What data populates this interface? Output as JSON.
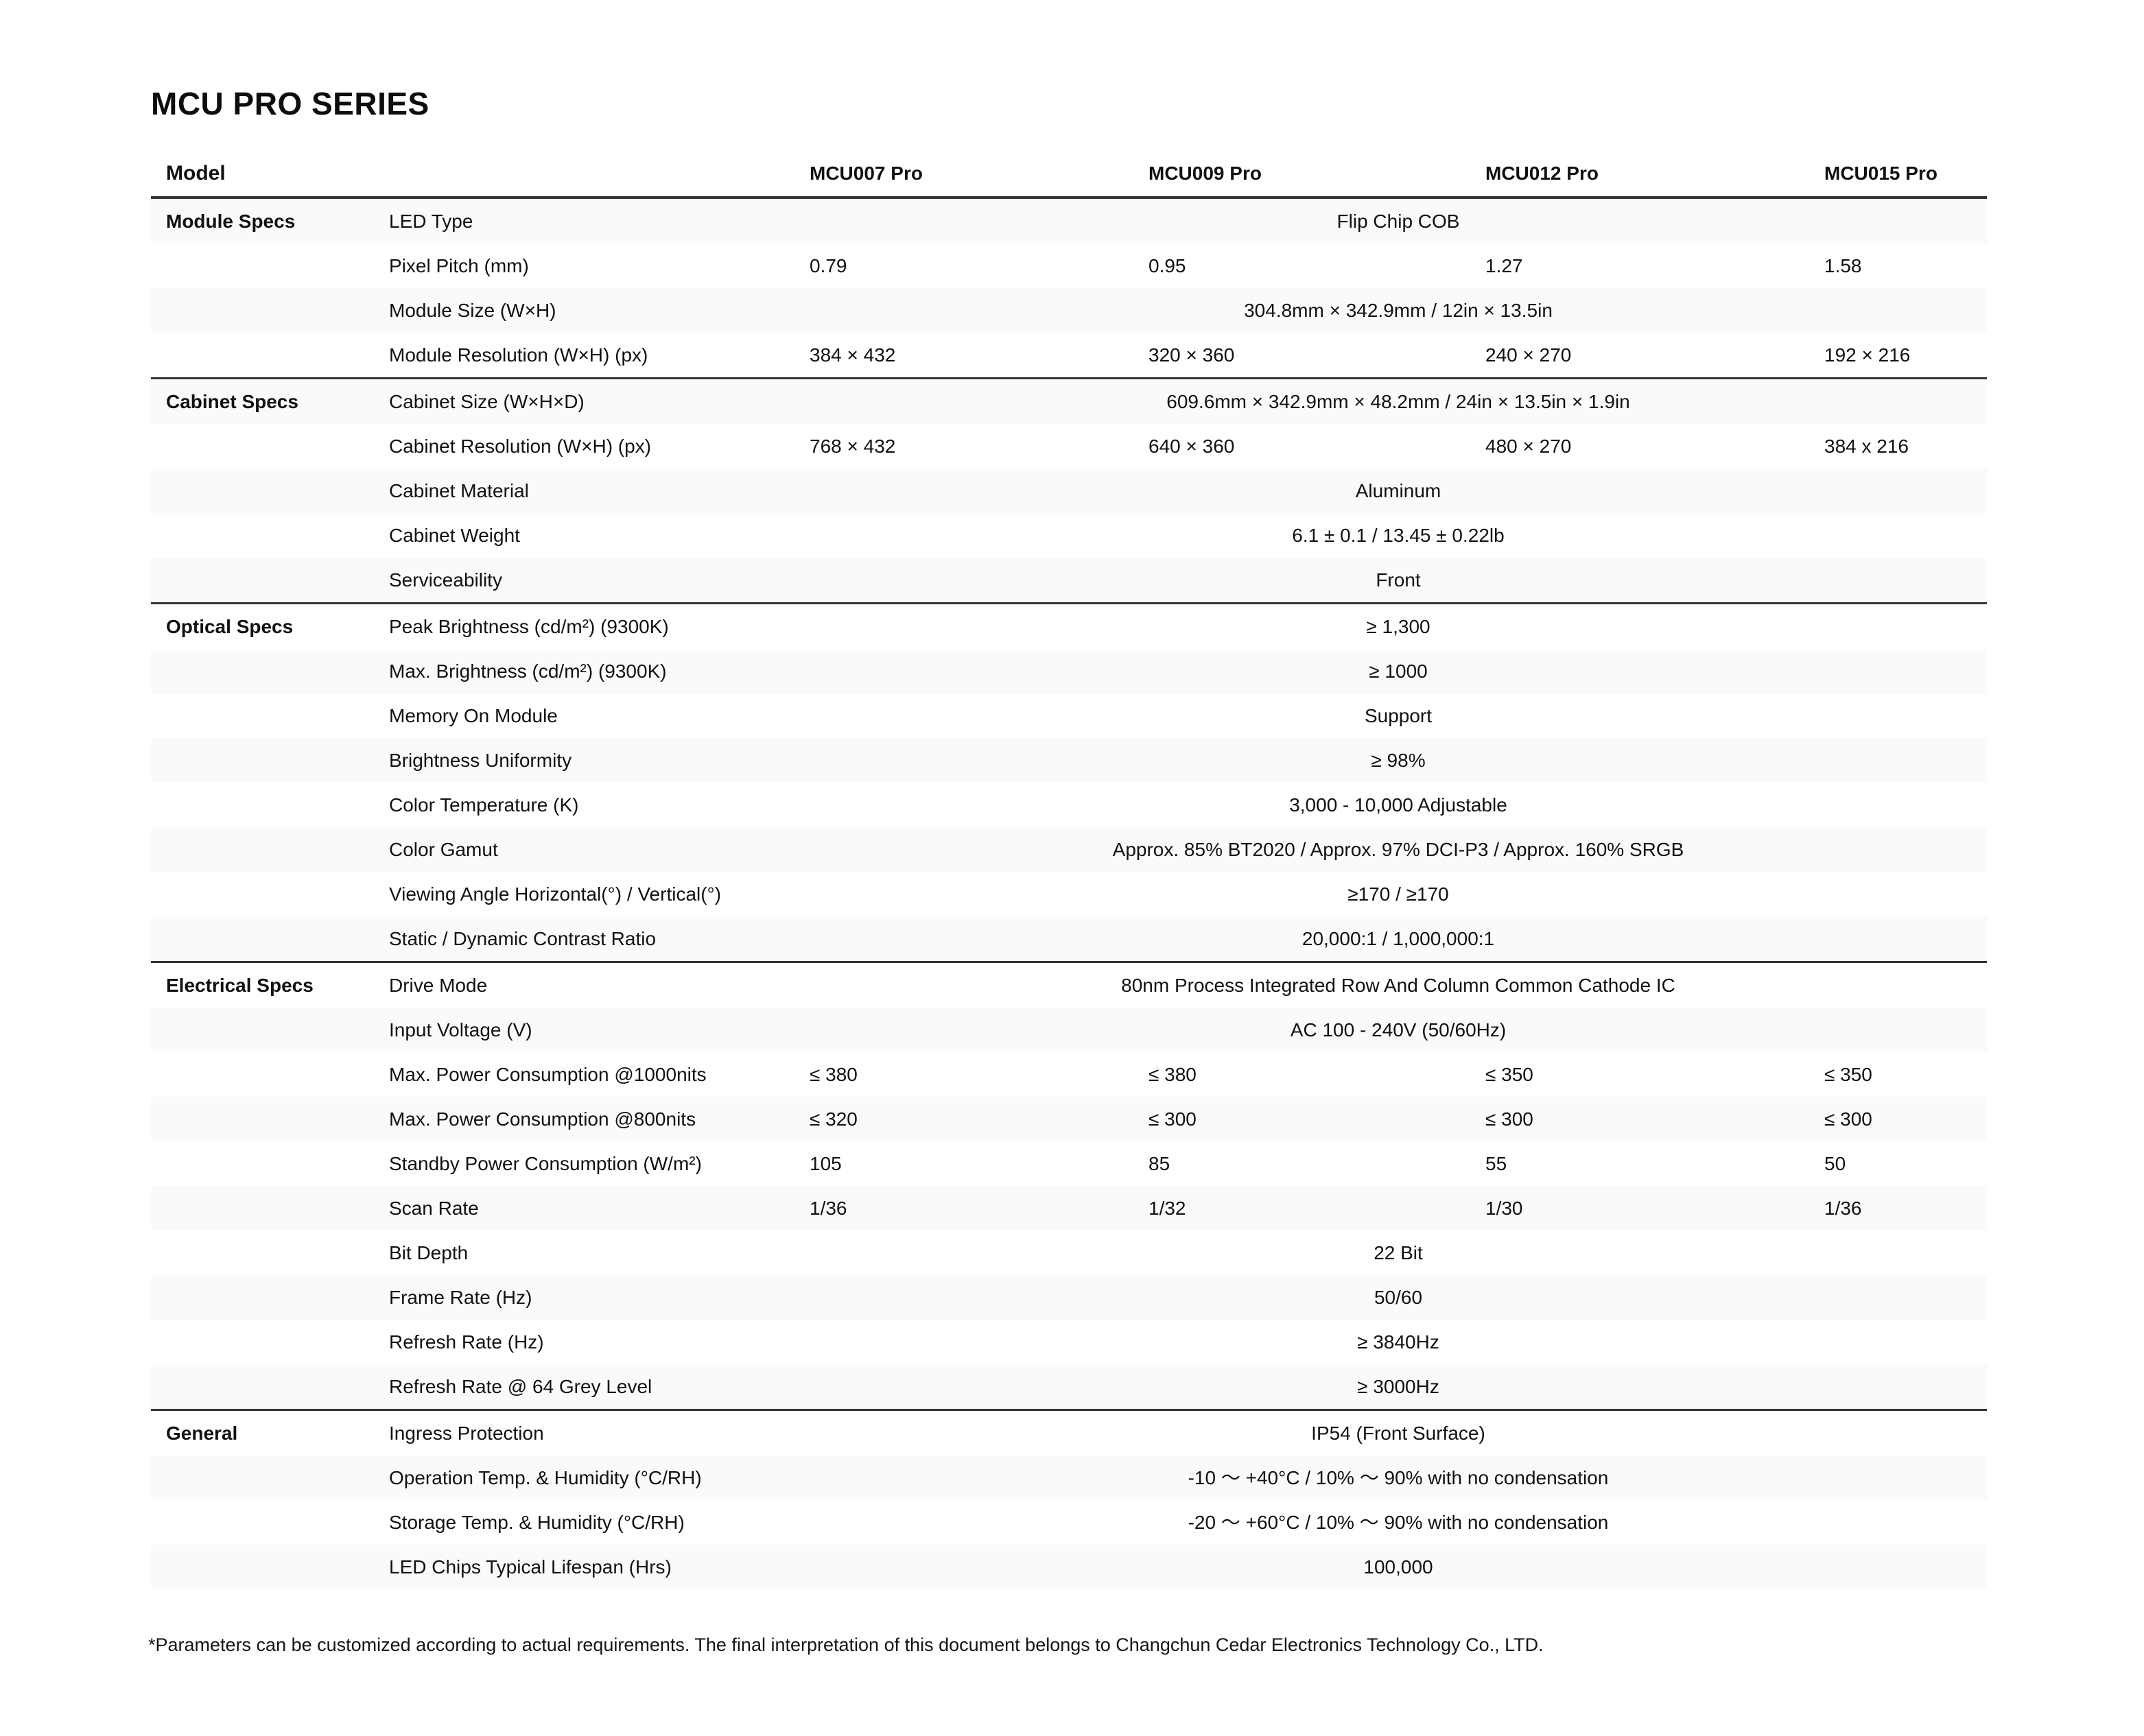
{
  "title": "MCU PRO SERIES",
  "colors": {
    "zebra_stripe": "#fafafb",
    "section_border": "#343434",
    "text": "#111111"
  },
  "table": {
    "header": {
      "model_label": "Model",
      "columns": [
        "MCU007 Pro",
        "MCU009 Pro",
        "MCU012 Pro",
        "MCU015 Pro"
      ]
    },
    "sections": [
      {
        "name": "Module Specs",
        "rows": [
          {
            "label": "LED Type",
            "span": "Flip Chip COB"
          },
          {
            "label": "Pixel Pitch (mm)",
            "values": [
              "0.79",
              "0.95",
              "1.27",
              "1.58"
            ]
          },
          {
            "label": "Module Size (W×H)",
            "span": "304.8mm × 342.9mm / 12in × 13.5in"
          },
          {
            "label": "Module Resolution (W×H) (px)",
            "values": [
              "384 × 432",
              "320 × 360",
              "240 × 270",
              "192 × 216"
            ]
          }
        ]
      },
      {
        "name": "Cabinet Specs",
        "rows": [
          {
            "label": "Cabinet Size (W×H×D)",
            "span": "609.6mm × 342.9mm × 48.2mm / 24in × 13.5in × 1.9in"
          },
          {
            "label": "Cabinet Resolution (W×H) (px)",
            "values": [
              "768 × 432",
              "640 × 360",
              "480 × 270",
              "384 x 216"
            ]
          },
          {
            "label": "Cabinet Material",
            "span": "Aluminum"
          },
          {
            "label": "Cabinet Weight",
            "span": "6.1 ± 0.1 / 13.45 ± 0.22lb"
          },
          {
            "label": "Serviceability",
            "span": "Front"
          }
        ]
      },
      {
        "name": "Optical Specs",
        "rows": [
          {
            "label": "Peak Brightness (cd/m²) (9300K)",
            "span": "≥ 1,300"
          },
          {
            "label": "Max. Brightness (cd/m²) (9300K)",
            "span": "≥ 1000"
          },
          {
            "label": "Memory On Module",
            "span": "Support"
          },
          {
            "label": "Brightness Uniformity",
            "span": "≥ 98%"
          },
          {
            "label": "Color Temperature (K)",
            "span": "3,000 - 10,000 Adjustable"
          },
          {
            "label": "Color Gamut",
            "span": "Approx. 85% BT2020 / Approx. 97% DCI-P3 / Approx. 160% SRGB"
          },
          {
            "label": "Viewing Angle Horizontal(°) / Vertical(°)",
            "span": "≥170 / ≥170"
          },
          {
            "label": "Static / Dynamic Contrast Ratio",
            "span": "20,000:1 / 1,000,000:1"
          }
        ]
      },
      {
        "name": "Electrical Specs",
        "rows": [
          {
            "label": "Drive Mode",
            "span": "80nm Process Integrated Row And Column Common Cathode IC"
          },
          {
            "label": "Input Voltage (V)",
            "span": "AC 100 - 240V (50/60Hz)"
          },
          {
            "label": "Max. Power Consumption @1000nits",
            "values": [
              "≤ 380",
              "≤ 380",
              "≤ 350",
              "≤ 350"
            ]
          },
          {
            "label": "Max. Power Consumption @800nits",
            "values": [
              "≤ 320",
              "≤ 300",
              "≤ 300",
              "≤ 300"
            ]
          },
          {
            "label": "Standby Power Consumption (W/m²)",
            "values": [
              "105",
              "85",
              "55",
              "50"
            ]
          },
          {
            "label": "Scan Rate",
            "values": [
              "1/36",
              "1/32",
              "1/30",
              "1/36"
            ]
          },
          {
            "label": "Bit Depth",
            "span": "22 Bit"
          },
          {
            "label": "Frame Rate (Hz)",
            "span": "50/60"
          },
          {
            "label": "Refresh Rate (Hz)",
            "span": "≥ 3840Hz"
          },
          {
            "label": "Refresh Rate @ 64 Grey Level",
            "span": "≥ 3000Hz"
          }
        ]
      },
      {
        "name": "General",
        "rows": [
          {
            "label": "Ingress Protection",
            "span": "IP54 (Front Surface)"
          },
          {
            "label": "Operation Temp. & Humidity (°C/RH)",
            "span": "-10 ～ +40°C / 10% ～ 90% with no condensation"
          },
          {
            "label": "Storage Temp. & Humidity (°C/RH)",
            "span": "-20 ～ +60°C / 10% ～ 90% with no condensation"
          },
          {
            "label": "LED Chips Typical Lifespan (Hrs)",
            "span": "100,000"
          }
        ]
      }
    ]
  },
  "footnote": "*Parameters can be customized according to actual requirements. The final interpretation of this document belongs to Changchun Cedar Electronics Technology Co., LTD."
}
